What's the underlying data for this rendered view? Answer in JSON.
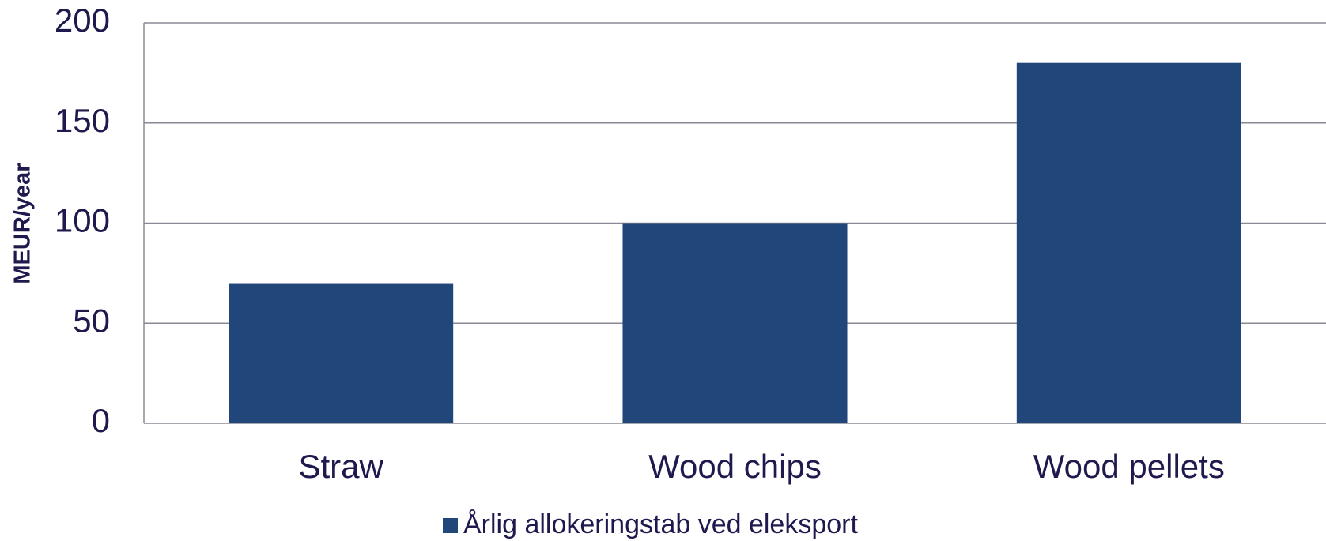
{
  "chart_data": {
    "type": "bar",
    "y_label": "MEUR/year",
    "categories": [
      "Straw",
      "Wood chips",
      "Wood pellets"
    ],
    "series": [
      {
        "name": "Årlig allokeringstab ved eleksport",
        "color": "#21467a",
        "values": [
          70,
          100,
          180
        ]
      }
    ],
    "ylim": [
      0,
      200
    ],
    "yticks": [
      0,
      50,
      100,
      150,
      200
    ],
    "grid": true,
    "legend": "bottom"
  }
}
